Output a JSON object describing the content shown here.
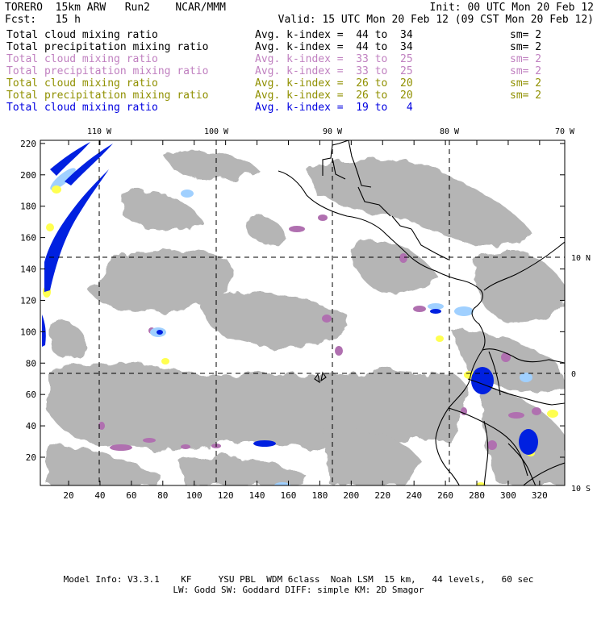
{
  "header": {
    "model": "TORERO  15km ARW   Run2    NCAR/MMM",
    "init": "Init: 00 UTC Mon 20 Feb 12",
    "fcst": "Fcst:   15 h",
    "valid": "Valid: 15 UTC Mon 20 Feb 12 (09 CST Mon 20 Feb 12)"
  },
  "legend": [
    {
      "field": "Total cloud mixing ratio",
      "avg": "Avg. k-index =  44 to  34",
      "sm": "sm= 2",
      "color": "#000000"
    },
    {
      "field": "Total precipitation mixing ratio",
      "avg": "Avg. k-index =  44 to  34",
      "sm": "sm= 2",
      "color": "#000000"
    },
    {
      "field": "Total cloud mixing ratio",
      "avg": "Avg. k-index =  33 to  25",
      "sm": "sm= 2",
      "color": "#c080c0"
    },
    {
      "field": "Total precipitation mixing ratio",
      "avg": "Avg. k-index =  33 to  25",
      "sm": "sm= 2",
      "color": "#c080c0"
    },
    {
      "field": "Total cloud mixing ratio",
      "avg": "Avg. k-index =  26 to  20",
      "sm": "sm= 2",
      "color": "#909000"
    },
    {
      "field": "Total precipitation mixing ratio",
      "avg": "Avg. k-index =  26 to  20",
      "sm": "sm= 2",
      "color": "#909000"
    },
    {
      "field": "Total cloud mixing ratio",
      "avg": "Avg. k-index =  19 to   4",
      "sm": "",
      "color": "#0000e0"
    }
  ],
  "map": {
    "lon_labels": [
      "110 W",
      "100 W",
      "90 W",
      "80 W",
      "70 W"
    ],
    "lat_labels": [
      "10 N",
      "0",
      "10 S"
    ],
    "x_ticks": [
      "20",
      "40",
      "60",
      "80",
      "100",
      "120",
      "140",
      "160",
      "180",
      "200",
      "220",
      "240",
      "260",
      "280",
      "300",
      "320"
    ],
    "y_ticks": [
      "20",
      "40",
      "60",
      "80",
      "100",
      "120",
      "140",
      "160",
      "180",
      "200",
      "220"
    ],
    "colors": {
      "cloud": "#a9a9a9",
      "k_purple": "#b070b0",
      "k_yellow": "#ffff50",
      "k_blue_dark": "#0020e0",
      "k_blue_light": "#a0d0ff",
      "coast": "#000000"
    }
  },
  "footer": {
    "line1": "Model Info: V3.3.1    KF     YSU PBL  WDM 6class  Noah LSM  15 km,   44 levels,   60 sec",
    "line2": "LW: Godd SW: Goddard DIFF: simple KM: 2D Smagor"
  }
}
